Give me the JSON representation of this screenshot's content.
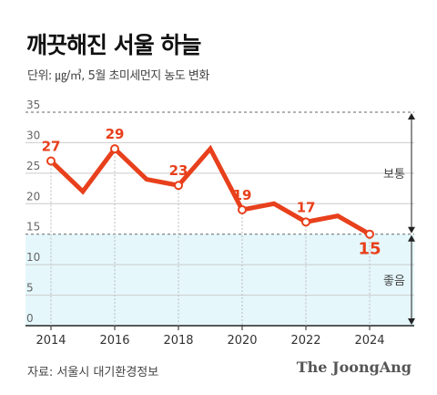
{
  "title": "깨끗해진 서울 하늘",
  "subtitle": "단위: ㎍/㎥, 5월 초미세먼지 농도 변화",
  "source": "자료: 서울시 대기환경정보",
  "brand": "The JoongAng",
  "colors": {
    "line": "#e8401c",
    "good_band": "#e5f7fb",
    "grid": "#cccccc"
  },
  "chart_data": {
    "type": "line",
    "x": [
      2014,
      2015,
      2016,
      2017,
      2018,
      2019,
      2020,
      2021,
      2022,
      2023,
      2024
    ],
    "values": [
      27,
      22,
      29,
      24,
      23,
      29,
      19,
      20,
      17,
      18,
      15
    ],
    "data_labels": {
      "2014": "27",
      "2016": "29",
      "2018": "23",
      "2020": "19",
      "2022": "17",
      "2024": "15"
    },
    "xticks": [
      2014,
      2016,
      2018,
      2020,
      2022,
      2024
    ],
    "yticks": [
      0,
      5,
      10,
      15,
      20,
      25,
      30,
      35
    ],
    "ylim": [
      0,
      35
    ],
    "xlim": [
      2013.2,
      2025.4
    ],
    "bands": [
      {
        "label": "보통",
        "from": 15,
        "to": 35
      },
      {
        "label": "좋음",
        "from": 0,
        "to": 15
      }
    ],
    "grid": true
  }
}
